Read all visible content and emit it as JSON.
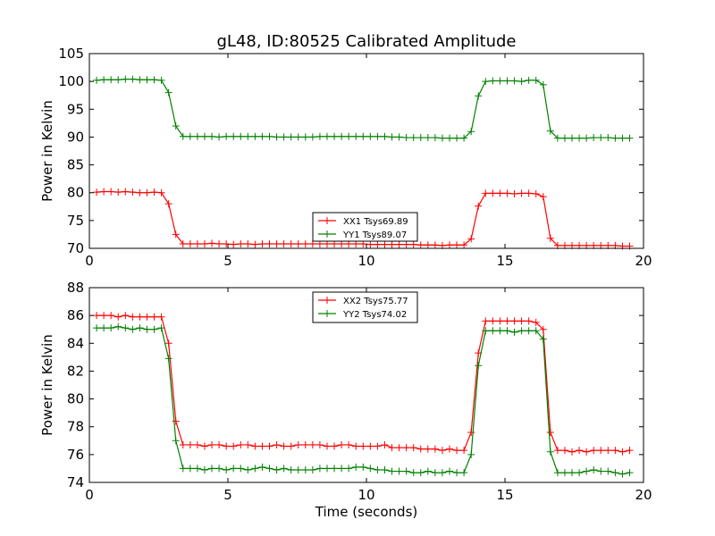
{
  "chart_data": [
    {
      "type": "line",
      "title": "gL48, ID:80525 Calibrated Amplitude",
      "xlabel": "",
      "ylabel": "Power in Kelvin",
      "xlim": [
        0,
        20
      ],
      "ylim": [
        70,
        105
      ],
      "xticks": [
        "0",
        "5",
        "10",
        "15",
        "20"
      ],
      "yticks": [
        "70",
        "75",
        "80",
        "85",
        "90",
        "95",
        "100",
        "105"
      ],
      "legend_position": "lower-center",
      "x": [
        0.26,
        0.52,
        0.78,
        1.04,
        1.3,
        1.56,
        1.82,
        2.08,
        2.34,
        2.6,
        2.86,
        3.12,
        3.38,
        3.64,
        3.9,
        4.16,
        4.42,
        4.68,
        4.94,
        5.2,
        5.46,
        5.72,
        5.98,
        6.24,
        6.5,
        6.76,
        7.02,
        7.28,
        7.54,
        7.8,
        8.06,
        8.32,
        8.58,
        8.84,
        9.1,
        9.36,
        9.62,
        9.88,
        10.14,
        10.4,
        10.66,
        10.92,
        11.18,
        11.44,
        11.7,
        11.96,
        12.22,
        12.48,
        12.74,
        13.0,
        13.26,
        13.52,
        13.78,
        14.04,
        14.3,
        14.56,
        14.82,
        15.08,
        15.34,
        15.6,
        15.86,
        16.12,
        16.38,
        16.64,
        16.9,
        17.16,
        17.42,
        17.68,
        17.94,
        18.2,
        18.46,
        18.72,
        18.98,
        19.24,
        19.5
      ],
      "series": [
        {
          "name": "XX1 Tsys69.89",
          "color": "#ff0000",
          "values": [
            80.1,
            80.2,
            80.2,
            80.1,
            80.2,
            80.1,
            80.0,
            80.0,
            80.1,
            80.0,
            78.0,
            72.5,
            70.8,
            70.8,
            70.8,
            70.8,
            70.9,
            70.8,
            70.8,
            70.7,
            70.8,
            70.8,
            70.7,
            70.8,
            70.8,
            70.8,
            70.8,
            70.8,
            70.8,
            70.8,
            70.8,
            70.8,
            70.8,
            70.8,
            70.8,
            70.8,
            70.8,
            70.8,
            70.7,
            70.7,
            70.7,
            70.7,
            70.7,
            70.7,
            70.7,
            70.6,
            70.6,
            70.6,
            70.5,
            70.6,
            70.6,
            70.6,
            71.7,
            77.6,
            79.9,
            79.9,
            79.9,
            79.9,
            79.8,
            79.9,
            79.9,
            79.8,
            79.3,
            71.8,
            70.5,
            70.5,
            70.5,
            70.5,
            70.5,
            70.5,
            70.5,
            70.5,
            70.5,
            70.4,
            70.4
          ]
        },
        {
          "name": "YY1 Tsys89.07",
          "color": "#008000",
          "values": [
            100.2,
            100.3,
            100.3,
            100.3,
            100.4,
            100.4,
            100.3,
            100.3,
            100.3,
            100.2,
            98.0,
            92.0,
            90.1,
            90.1,
            90.1,
            90.1,
            90.1,
            90.0,
            90.1,
            90.1,
            90.1,
            90.1,
            90.1,
            90.1,
            90.1,
            90.0,
            90.0,
            90.0,
            90.0,
            90.0,
            90.0,
            90.1,
            90.1,
            90.1,
            90.1,
            90.1,
            90.1,
            90.1,
            90.1,
            90.1,
            90.1,
            90.0,
            90.0,
            89.9,
            89.9,
            89.9,
            89.9,
            89.9,
            89.8,
            89.8,
            89.8,
            89.8,
            91.0,
            97.4,
            100.0,
            100.1,
            100.1,
            100.1,
            100.1,
            100.0,
            100.2,
            100.2,
            99.4,
            91.1,
            89.8,
            89.8,
            89.8,
            89.8,
            89.8,
            89.9,
            89.9,
            89.9,
            89.8,
            89.8,
            89.8
          ]
        }
      ]
    },
    {
      "type": "line",
      "title": "",
      "xlabel": "Time (seconds)",
      "ylabel": "Power in Kelvin",
      "xlim": [
        0,
        20
      ],
      "ylim": [
        74,
        88
      ],
      "xticks": [
        "0",
        "5",
        "10",
        "15",
        "20"
      ],
      "yticks": [
        "74",
        "76",
        "78",
        "80",
        "82",
        "84",
        "86",
        "88"
      ],
      "legend_position": "upper-center",
      "x": [
        0.26,
        0.52,
        0.78,
        1.04,
        1.3,
        1.56,
        1.82,
        2.08,
        2.34,
        2.6,
        2.86,
        3.12,
        3.38,
        3.64,
        3.9,
        4.16,
        4.42,
        4.68,
        4.94,
        5.2,
        5.46,
        5.72,
        5.98,
        6.24,
        6.5,
        6.76,
        7.02,
        7.28,
        7.54,
        7.8,
        8.06,
        8.32,
        8.58,
        8.84,
        9.1,
        9.36,
        9.62,
        9.88,
        10.14,
        10.4,
        10.66,
        10.92,
        11.18,
        11.44,
        11.7,
        11.96,
        12.22,
        12.48,
        12.74,
        13.0,
        13.26,
        13.52,
        13.78,
        14.04,
        14.3,
        14.56,
        14.82,
        15.08,
        15.34,
        15.6,
        15.86,
        16.12,
        16.38,
        16.64,
        16.9,
        17.16,
        17.42,
        17.68,
        17.94,
        18.2,
        18.46,
        18.72,
        18.98,
        19.24,
        19.5
      ],
      "series": [
        {
          "name": "XX2 Tsys75.77",
          "color": "#ff0000",
          "values": [
            86.0,
            86.0,
            86.0,
            85.9,
            86.0,
            85.9,
            85.9,
            85.9,
            85.9,
            85.9,
            84.0,
            78.4,
            76.7,
            76.7,
            76.7,
            76.6,
            76.7,
            76.7,
            76.6,
            76.6,
            76.7,
            76.7,
            76.6,
            76.6,
            76.6,
            76.7,
            76.6,
            76.6,
            76.7,
            76.7,
            76.7,
            76.7,
            76.6,
            76.6,
            76.7,
            76.7,
            76.6,
            76.6,
            76.6,
            76.6,
            76.7,
            76.5,
            76.5,
            76.5,
            76.5,
            76.4,
            76.4,
            76.4,
            76.3,
            76.4,
            76.3,
            76.3,
            77.6,
            83.3,
            85.6,
            85.6,
            85.6,
            85.6,
            85.6,
            85.6,
            85.6,
            85.5,
            85.0,
            77.6,
            76.3,
            76.3,
            76.2,
            76.3,
            76.2,
            76.3,
            76.3,
            76.3,
            76.3,
            76.2,
            76.3
          ]
        },
        {
          "name": "YY2 Tsys74.02",
          "color": "#008000",
          "values": [
            85.1,
            85.1,
            85.1,
            85.2,
            85.1,
            85.0,
            85.1,
            85.0,
            85.0,
            85.1,
            82.9,
            77.0,
            75.0,
            75.0,
            75.0,
            74.9,
            75.0,
            75.0,
            74.9,
            75.0,
            75.0,
            74.9,
            75.0,
            75.1,
            75.0,
            74.9,
            75.0,
            74.9,
            74.9,
            74.9,
            74.9,
            75.0,
            75.0,
            75.0,
            75.0,
            75.0,
            75.1,
            75.1,
            75.0,
            74.9,
            74.9,
            74.8,
            74.8,
            74.8,
            74.7,
            74.7,
            74.8,
            74.7,
            74.7,
            74.8,
            74.7,
            74.7,
            76.0,
            82.4,
            84.9,
            84.9,
            84.9,
            84.9,
            84.8,
            84.9,
            84.9,
            84.9,
            84.3,
            76.2,
            74.7,
            74.7,
            74.7,
            74.7,
            74.8,
            74.9,
            74.8,
            74.8,
            74.7,
            74.6,
            74.7
          ]
        }
      ]
    }
  ]
}
